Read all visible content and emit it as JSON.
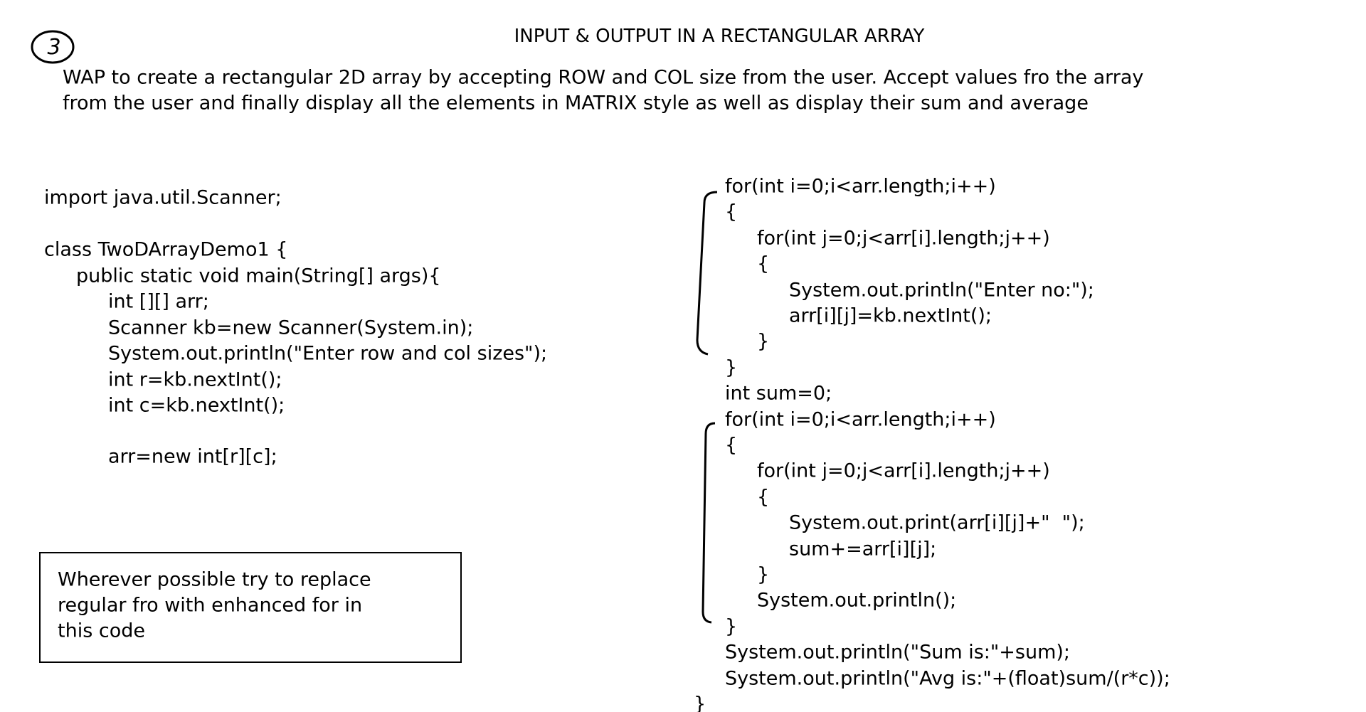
{
  "badge": "3",
  "title": "INPUT & OUTPUT IN A RECTANGULAR ARRAY",
  "description": [
    "WAP to create a rectangular 2D array by accepting ROW and COL size from the user. Accept values fro the array",
    "from the user and finally display all the elements in MATRIX style as well as display their sum and average"
  ],
  "left_code": {
    "import": "import java.util.Scanner;",
    "body": [
      "class TwoDArrayDemo1 {",
      "public static void main(String[] args){",
      "int [][] arr;",
      "Scanner kb=new Scanner(System.in);",
      "System.out.println(\"Enter row and col sizes\");",
      "int r=kb.nextInt();",
      "int c=kb.nextInt();"
    ],
    "alloc": "arr=new int[r][c];"
  },
  "note": [
    "Wherever possible try to replace",
    "regular fro with enhanced for in",
    "this code"
  ],
  "right_code": [
    "for(int i=0;i<arr.length;i++)",
    "{",
    "for(int j=0;j<arr[i].length;j++)",
    "{",
    "System.out.println(\"Enter no:\");",
    "arr[i][j]=kb.nextInt();",
    "}",
    "}",
    "int sum=0;",
    "for(int i=0;i<arr.length;i++)",
    "{",
    "for(int j=0;j<arr[i].length;j++)",
    "{",
    "System.out.print(arr[i][j]+\"  \");",
    "sum+=arr[i][j];",
    "}",
    "System.out.println();",
    "}",
    "System.out.println(\"Sum is:\"+sum);",
    "System.out.println(\"Avg is:\"+(float)sum/(r*c));"
  ],
  "closing": "}"
}
